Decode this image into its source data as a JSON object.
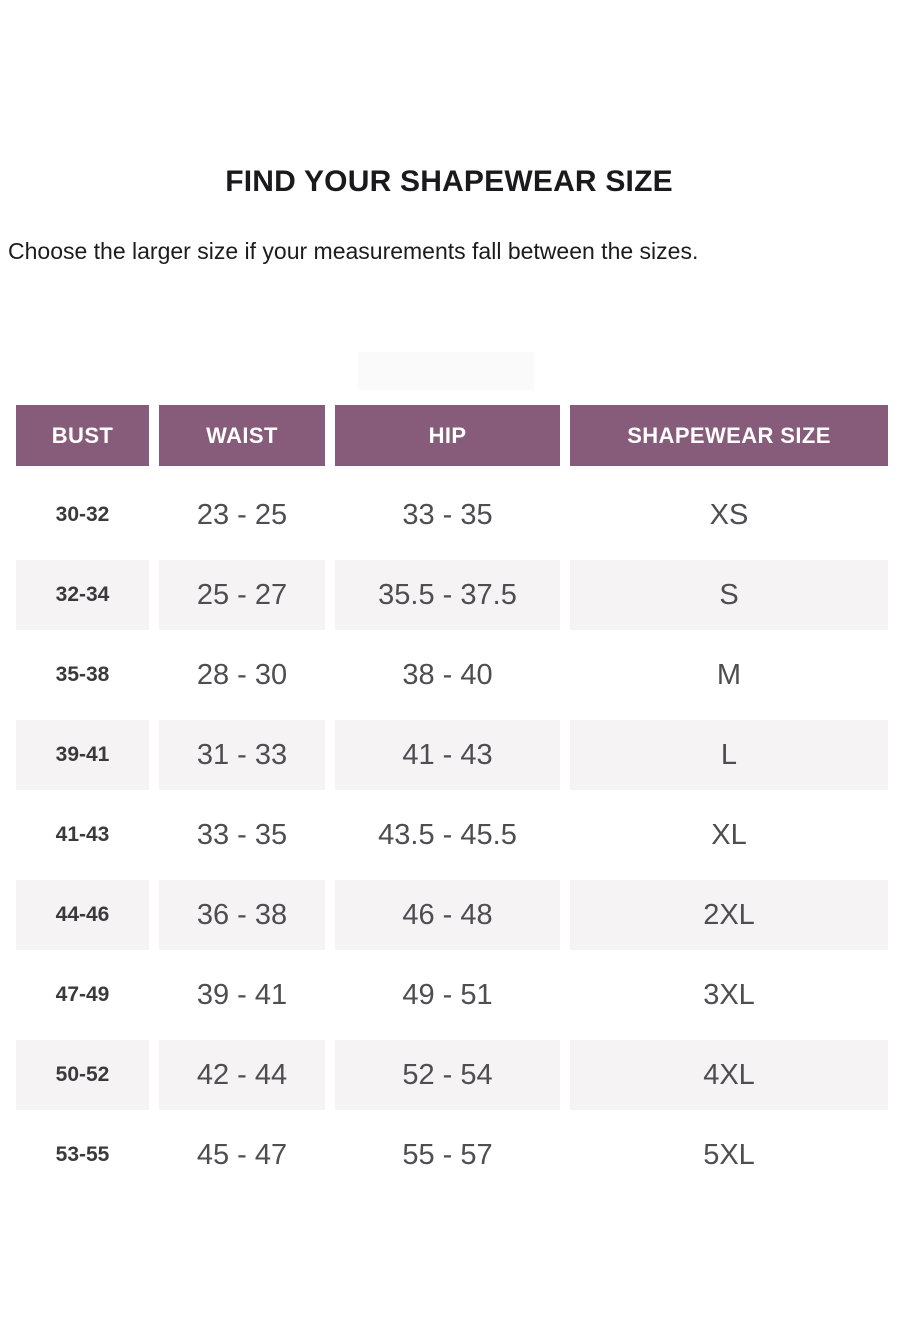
{
  "page": {
    "title": "FIND YOUR SHAPEWEAR SIZE",
    "subtitle": "Choose the larger size if your measurements fall between the sizes."
  },
  "table": {
    "headers": [
      "BUST",
      "WAIST",
      "HIP",
      "SHAPEWEAR SIZE"
    ],
    "rows": [
      {
        "bust": "30-32",
        "waist": "23 - 25",
        "hip": "33 - 35",
        "size": "XS"
      },
      {
        "bust": "32-34",
        "waist": "25 - 27",
        "hip": "35.5 - 37.5",
        "size": "S"
      },
      {
        "bust": "35-38",
        "waist": "28 - 30",
        "hip": "38 - 40",
        "size": "M"
      },
      {
        "bust": "39-41",
        "waist": "31 - 33",
        "hip": "41 - 43",
        "size": "L"
      },
      {
        "bust": "41-43",
        "waist": "33 - 35",
        "hip": "43.5 - 45.5",
        "size": "XL"
      },
      {
        "bust": "44-46",
        "waist": "36 - 38",
        "hip": "46 - 48",
        "size": "2XL"
      },
      {
        "bust": "47-49",
        "waist": "39 - 41",
        "hip": "49 - 51",
        "size": "3XL"
      },
      {
        "bust": "50-52",
        "waist": "42 - 44",
        "hip": "52 - 54",
        "size": "4XL"
      },
      {
        "bust": "53-55",
        "waist": "45 - 47",
        "hip": "55 - 57",
        "size": "5XL"
      }
    ]
  },
  "colors": {
    "header_bg": "#875C7A",
    "header_text": "#ffffff",
    "row_alt_bg": "#f6f3f4",
    "bust_text": "#3a3a3c",
    "value_text": "#4d4d52"
  }
}
